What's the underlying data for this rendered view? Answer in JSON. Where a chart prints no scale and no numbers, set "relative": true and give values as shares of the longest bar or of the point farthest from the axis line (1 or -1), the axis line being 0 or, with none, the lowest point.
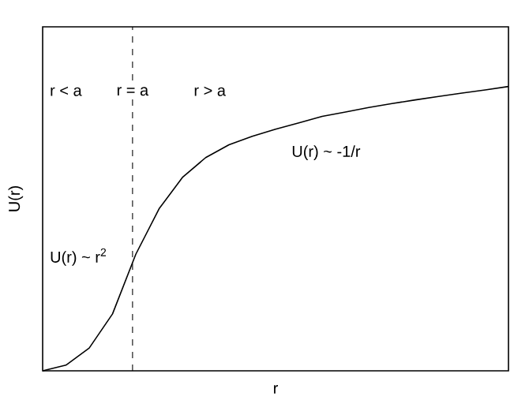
{
  "chart_data": {
    "type": "line",
    "relative": true,
    "xlabel": "r",
    "ylabel": "U(r)",
    "categories": [
      null,
      null,
      null,
      null,
      null,
      null,
      null,
      null,
      null,
      null,
      null,
      null,
      null,
      null,
      null,
      null,
      null,
      null,
      null,
      null,
      null
    ],
    "series": [
      {
        "color": "#000000",
        "values": [
          0,
          0.02,
          0.08,
          0.2,
          0.41,
          0.57,
          0.68,
          0.75,
          0.795,
          0.825,
          0.85,
          0.872,
          0.895,
          0.91,
          0.926,
          0.94,
          0.953,
          0.965,
          0.977,
          0.988,
          1
        ]
      }
    ],
    "annotations": [
      "r < a",
      "r = a",
      "r > a",
      "U(r) ~ -1/r",
      "U(r) ~ r$^{2}$"
    ]
  }
}
